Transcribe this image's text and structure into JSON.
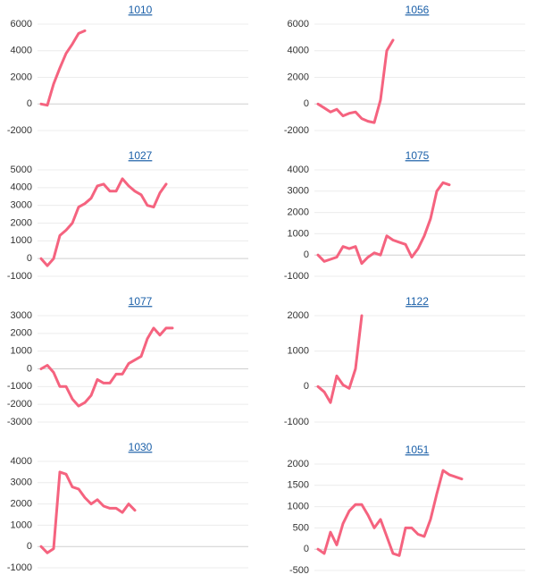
{
  "chart_data": [
    {
      "type": "line",
      "title": "1010",
      "color": "#f5637f",
      "grid": true,
      "ylim": [
        -2000,
        6000
      ],
      "yticks": [
        -2000,
        0,
        2000,
        4000,
        6000
      ],
      "categories": [
        null,
        null,
        null,
        null,
        null,
        null,
        null,
        null
      ],
      "values": [
        0,
        -100,
        1500,
        2700,
        3800,
        4500,
        5300,
        5500
      ]
    },
    {
      "type": "line",
      "title": "1056",
      "color": "#f5637f",
      "grid": true,
      "ylim": [
        -2000,
        6000
      ],
      "yticks": [
        -2000,
        0,
        2000,
        4000,
        6000
      ],
      "categories": [
        null,
        null,
        null,
        null,
        null,
        null,
        null,
        null,
        null,
        null,
        null,
        null,
        null
      ],
      "values": [
        0,
        -300,
        -600,
        -400,
        -900,
        -700,
        -600,
        -1100,
        -1300,
        -1400,
        300,
        4000,
        4800
      ]
    },
    {
      "type": "line",
      "title": "1027",
      "color": "#f5637f",
      "grid": true,
      "ylim": [
        -1000,
        5000
      ],
      "yticks": [
        -1000,
        0,
        1000,
        2000,
        3000,
        4000,
        5000
      ],
      "categories": [
        null,
        null,
        null,
        null,
        null,
        null,
        null,
        null,
        null,
        null,
        null,
        null,
        null,
        null,
        null,
        null,
        null,
        null,
        null,
        null,
        null
      ],
      "values": [
        0,
        -400,
        0,
        1300,
        1600,
        2000,
        2900,
        3100,
        3400,
        4100,
        4200,
        3800,
        3800,
        4500,
        4100,
        3800,
        3600,
        3000,
        2900,
        3700,
        4200
      ]
    },
    {
      "type": "line",
      "title": "1075",
      "color": "#f5637f",
      "grid": true,
      "ylim": [
        -1000,
        4000
      ],
      "yticks": [
        -1000,
        0,
        1000,
        2000,
        3000,
        4000
      ],
      "categories": [
        null,
        null,
        null,
        null,
        null,
        null,
        null,
        null,
        null,
        null,
        null,
        null,
        null,
        null,
        null,
        null,
        null,
        null,
        null,
        null,
        null,
        null
      ],
      "values": [
        0,
        -300,
        -200,
        -100,
        400,
        300,
        400,
        -400,
        -100,
        100,
        0,
        900,
        700,
        600,
        500,
        -100,
        300,
        900,
        1700,
        3000,
        3400,
        3300
      ]
    },
    {
      "type": "line",
      "title": "1077",
      "color": "#f5637f",
      "grid": true,
      "ylim": [
        -3000,
        3000
      ],
      "yticks": [
        -3000,
        -2000,
        -1000,
        0,
        1000,
        2000,
        3000
      ],
      "categories": [
        null,
        null,
        null,
        null,
        null,
        null,
        null,
        null,
        null,
        null,
        null,
        null,
        null,
        null,
        null,
        null,
        null,
        null,
        null,
        null,
        null,
        null
      ],
      "values": [
        0,
        200,
        -200,
        -1000,
        -1000,
        -1700,
        -2100,
        -1900,
        -1500,
        -600,
        -800,
        -800,
        -300,
        -300,
        300,
        500,
        700,
        1700,
        2300,
        1900,
        2300,
        2300
      ]
    },
    {
      "type": "line",
      "title": "1122",
      "color": "#f5637f",
      "grid": true,
      "ylim": [
        -1000,
        2000
      ],
      "yticks": [
        -1000,
        0,
        1000,
        2000
      ],
      "categories": [
        null,
        null,
        null,
        null,
        null,
        null,
        null,
        null
      ],
      "values": [
        0,
        -150,
        -450,
        300,
        50,
        -50,
        500,
        2000
      ]
    },
    {
      "type": "line",
      "title": "1030",
      "color": "#f5637f",
      "grid": true,
      "ylim": [
        -1000,
        4000
      ],
      "yticks": [
        -1000,
        0,
        1000,
        2000,
        3000,
        4000
      ],
      "categories": [
        null,
        null,
        null,
        null,
        null,
        null,
        null,
        null,
        null,
        null,
        null,
        null,
        null,
        null,
        null,
        null
      ],
      "values": [
        0,
        -300,
        -100,
        3500,
        3400,
        2800,
        2700,
        2300,
        2000,
        2200,
        1900,
        1800,
        1800,
        1600,
        2000,
        1700
      ]
    },
    {
      "type": "line",
      "title": "1051",
      "color": "#f5637f",
      "grid": true,
      "ylim": [
        -500,
        2000
      ],
      "yticks": [
        -500,
        0,
        500,
        1000,
        1500,
        2000
      ],
      "categories": [
        null,
        null,
        null,
        null,
        null,
        null,
        null,
        null,
        null,
        null,
        null,
        null,
        null,
        null,
        null,
        null,
        null,
        null,
        null,
        null,
        null,
        null,
        null,
        null
      ],
      "values": [
        0,
        -100,
        400,
        100,
        600,
        900,
        1050,
        1050,
        800,
        500,
        700,
        300,
        -100,
        -150,
        500,
        500,
        350,
        300,
        700,
        1300,
        1850,
        1750,
        1700,
        1650
      ]
    }
  ]
}
